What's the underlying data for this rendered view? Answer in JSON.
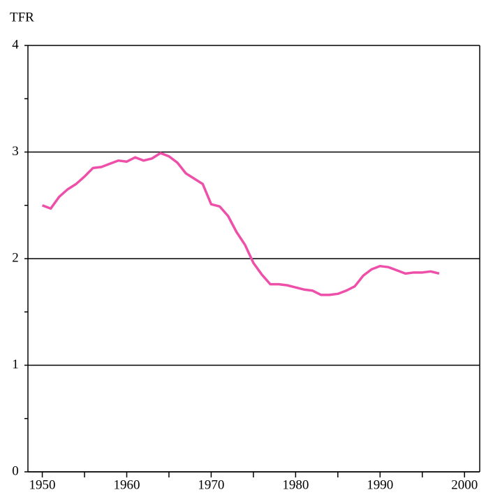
{
  "chart_data": {
    "type": "line",
    "title": "TFR",
    "x": [
      1950,
      1951,
      1952,
      1953,
      1954,
      1955,
      1956,
      1957,
      1958,
      1959,
      1960,
      1961,
      1962,
      1963,
      1964,
      1965,
      1966,
      1967,
      1968,
      1969,
      1970,
      1971,
      1972,
      1973,
      1974,
      1975,
      1976,
      1977,
      1978,
      1979,
      1980,
      1981,
      1982,
      1983,
      1984,
      1985,
      1986,
      1987,
      1988,
      1989,
      1990,
      1991,
      1992,
      1993,
      1994,
      1995,
      1996,
      1997
    ],
    "series": [
      {
        "color": "#ee4fa8",
        "values": [
          2.5,
          2.47,
          2.58,
          2.65,
          2.7,
          2.77,
          2.85,
          2.86,
          2.89,
          2.92,
          2.91,
          2.95,
          2.92,
          2.94,
          2.99,
          2.96,
          2.9,
          2.8,
          2.75,
          2.7,
          2.51,
          2.49,
          2.4,
          2.25,
          2.13,
          1.96,
          1.85,
          1.76,
          1.76,
          1.75,
          1.73,
          1.71,
          1.7,
          1.66,
          1.66,
          1.67,
          1.7,
          1.74,
          1.84,
          1.9,
          1.93,
          1.92,
          1.89,
          1.86,
          1.87,
          1.87,
          1.88,
          1.86
        ]
      }
    ],
    "xlim": [
      1948.3,
      2001.8
    ],
    "ylim": [
      0,
      4
    ],
    "xticks": [
      1950,
      1960,
      1970,
      1980,
      1990,
      2000
    ],
    "xminor": [
      1955,
      1965,
      1975,
      1985,
      1995
    ],
    "yticks": [
      0,
      1,
      2,
      3,
      4
    ],
    "yminor": [
      0.5,
      1.5,
      2.5,
      3.5
    ],
    "grid": true
  }
}
